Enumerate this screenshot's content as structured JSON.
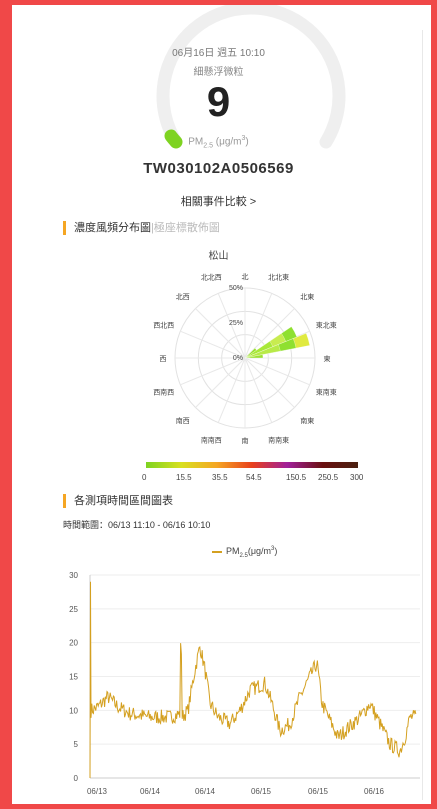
{
  "gauge": {
    "date_time": "06月16日 週五 10:10",
    "pollutant_name": "細懸浮微粒",
    "value": "9",
    "unit_prefix": "PM",
    "unit_sub": "2.5",
    "unit_mid": " (μg/m",
    "unit_sup": "3",
    "unit_suffix": ")",
    "color": "#7ed321"
  },
  "station": {
    "id": "TW030102A0506569"
  },
  "events_link": "相關事件比較 >",
  "rose_section": {
    "tab_active": "濃度風頻分布圖",
    "tab_inactive": "極座標散佈圖",
    "station_name": "松山"
  },
  "rose": {
    "directions": [
      "北",
      "北北東",
      "北東",
      "東北東",
      "東",
      "東南東",
      "南東",
      "南南東",
      "南",
      "南南西",
      "南西",
      "西南西",
      "西",
      "西北西",
      "北西",
      "北北西"
    ],
    "rings": [
      "0%",
      "25%",
      "50%"
    ],
    "scale_labels": [
      "0",
      "15.5",
      "35.5",
      "54.5",
      "150.5",
      "250.5",
      "300"
    ],
    "scale_colors": [
      "#7ed321",
      "#d8e020",
      "#f5a623",
      "#e8401c",
      "#a0209a",
      "#6a1010",
      "#4a2010"
    ]
  },
  "chart_section": {
    "title": "各測項時間區間圖表",
    "range_label": "時間範圍：06/13 11:10 - 06/16 10:10"
  },
  "chart_data": {
    "type": "line",
    "title": "",
    "series": [
      {
        "name": "PM2.5(μg/m3)",
        "color": "#d4a020"
      }
    ],
    "x_ticks": [
      "06/13",
      "06/14",
      "06/14",
      "06/15",
      "06/15",
      "06/16"
    ],
    "yticks": [
      0,
      5,
      10,
      15,
      20,
      25,
      30
    ],
    "ylim": [
      0,
      30
    ],
    "grid": "horizontal"
  }
}
